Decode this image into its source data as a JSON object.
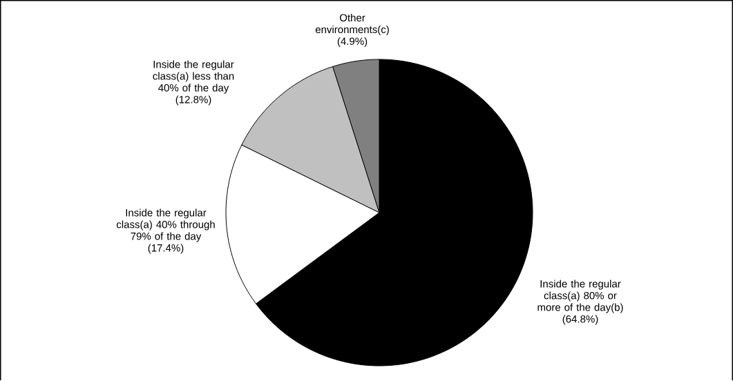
{
  "chart_data": {
    "type": "pie",
    "categories": [
      "Inside the regular class(a) 80% or more of the day(b)",
      "Inside the regular class(a) 40% through 79% of the day",
      "Inside the regular class(a) less than 40% of the day",
      "Other environments(c)"
    ],
    "values": [
      64.8,
      17.4,
      12.8,
      4.9
    ],
    "colors": [
      "#000000",
      "#ffffff",
      "#c0c0c0",
      "#808080"
    ],
    "value_labels": [
      "(64.8%)",
      "(17.4%)",
      "(12.8%)",
      "(4.9%)"
    ]
  }
}
